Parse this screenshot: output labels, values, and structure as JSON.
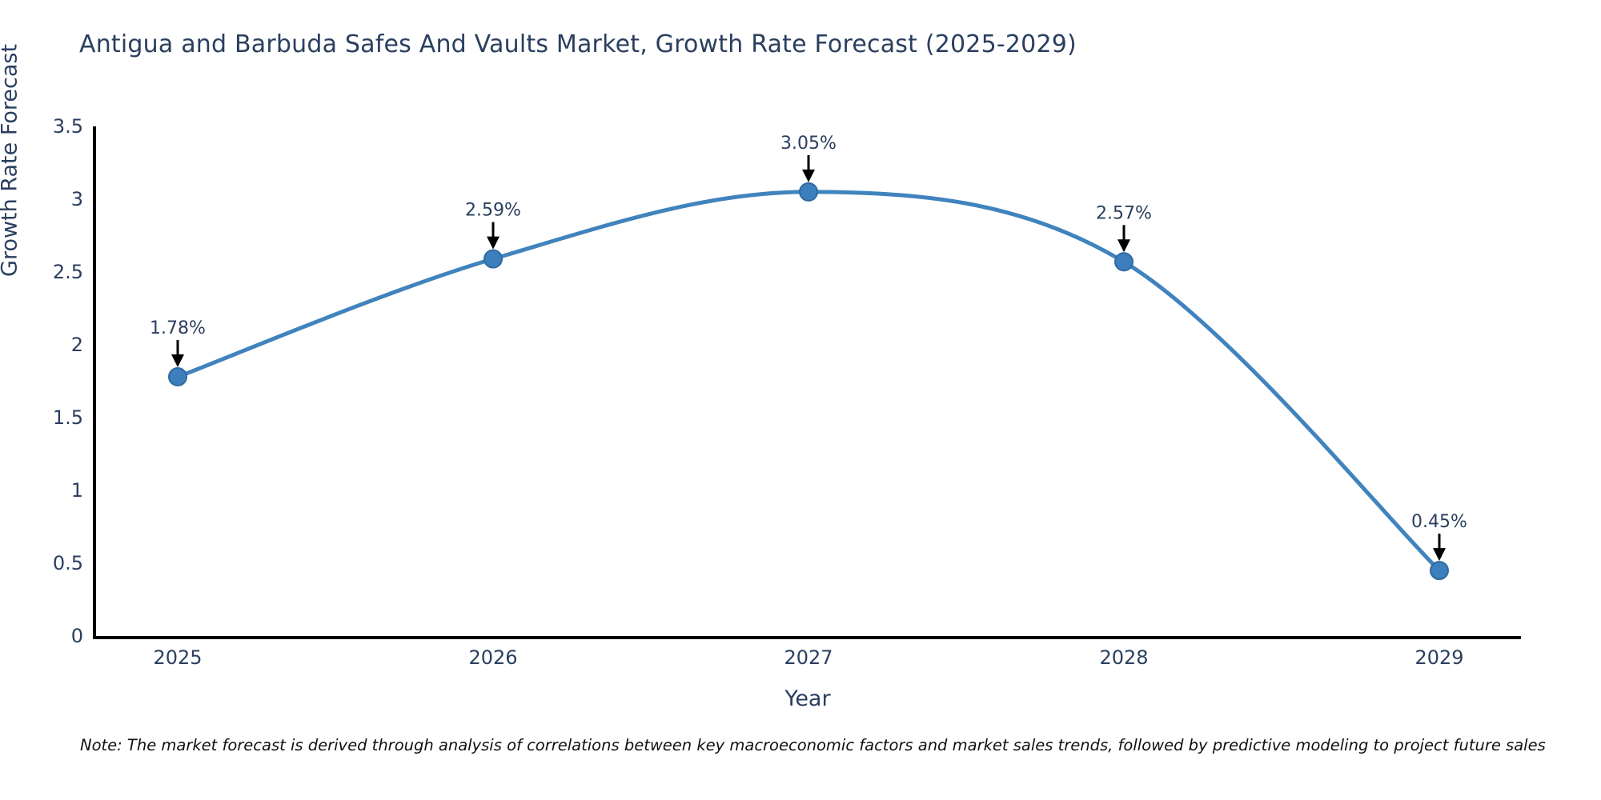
{
  "chart": {
    "title": "Antigua and Barbuda Safes And Vaults Market, Growth Rate Forecast (2025-2029)"
  },
  "chart_data": {
    "type": "line",
    "title": "Antigua and Barbuda Safes And Vaults Market, Growth Rate Forecast (2025-2029)",
    "categories": [
      "2025",
      "2026",
      "2027",
      "2028",
      "2029"
    ],
    "x": [
      2025,
      2026,
      2027,
      2028,
      2029
    ],
    "values": [
      1.78,
      2.59,
      3.05,
      2.57,
      0.45
    ],
    "point_labels": [
      "1.78%",
      "2.59%",
      "3.05%",
      "2.57%",
      "0.45%"
    ],
    "xlabel": "Year",
    "ylabel": "Growth Rate Forecast",
    "ylim": [
      0,
      3.5
    ],
    "yticks": [
      0,
      0.5,
      1,
      1.5,
      2,
      2.5,
      3,
      3.5
    ],
    "ytick_labels": [
      "0",
      "0.5",
      "1",
      "1.5",
      "2",
      "2.5",
      "3",
      "3.5"
    ],
    "line_shape": "spline",
    "grid": false,
    "legend": "none",
    "annotations_have_arrows": true
  },
  "colors": {
    "line": "#4083bd",
    "marker_fill": "#3d7ebd",
    "marker_stroke": "#2f6ba0",
    "axis_line": "#000000",
    "tick_text": "#2a3f5f",
    "annotation_text": "#2a3f5f",
    "annotation_arrow": "#000000",
    "background": "#ffffff"
  },
  "note": {
    "text": "Note: The market forecast is derived through analysis of correlations between key macroeconomic factors and market sales trends, followed by predictive modeling to project future sales"
  }
}
